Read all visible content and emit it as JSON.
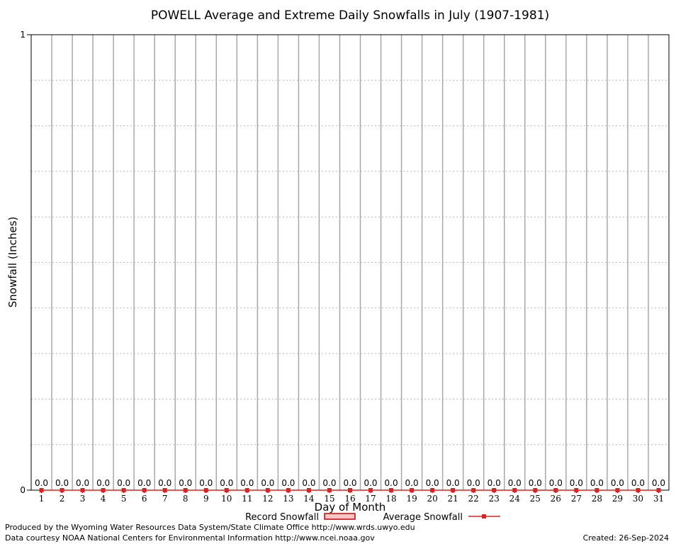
{
  "chart_data": {
    "type": "bar",
    "title": "POWELL Average and Extreme Daily Snowfalls in July (1907-1981)",
    "xlabel": "Day of Month",
    "ylabel": "Snowfall (Inches)",
    "ylim": [
      0,
      1
    ],
    "y_ticks": [
      "0",
      "1"
    ],
    "categories": [
      "1",
      "2",
      "3",
      "4",
      "5",
      "6",
      "7",
      "8",
      "9",
      "10",
      "11",
      "12",
      "13",
      "14",
      "15",
      "16",
      "17",
      "18",
      "19",
      "20",
      "21",
      "22",
      "23",
      "24",
      "25",
      "26",
      "27",
      "28",
      "29",
      "30",
      "31"
    ],
    "series": [
      {
        "name": "Record Snowfall",
        "type": "bar",
        "color": "#cc0000",
        "values": [
          0,
          0,
          0,
          0,
          0,
          0,
          0,
          0,
          0,
          0,
          0,
          0,
          0,
          0,
          0,
          0,
          0,
          0,
          0,
          0,
          0,
          0,
          0,
          0,
          0,
          0,
          0,
          0,
          0,
          0,
          0
        ]
      },
      {
        "name": "Average Snowfall",
        "type": "line",
        "color": "#dd2222",
        "values": [
          0,
          0,
          0,
          0,
          0,
          0,
          0,
          0,
          0,
          0,
          0,
          0,
          0,
          0,
          0,
          0,
          0,
          0,
          0,
          0,
          0,
          0,
          0,
          0,
          0,
          0,
          0,
          0,
          0,
          0,
          0
        ]
      }
    ],
    "data_labels": [
      "0.0",
      "0.0",
      "0.0",
      "0.0",
      "0.0",
      "0.0",
      "0.0",
      "0.0",
      "0.0",
      "0.0",
      "0.0",
      "0.0",
      "0.0",
      "0.0",
      "0.0",
      "0.0",
      "0.0",
      "0.0",
      "0.0",
      "0.0",
      "0.0",
      "0.0",
      "0.0",
      "0.0",
      "0.0",
      "0.0",
      "0.0",
      "0.0",
      "0.0",
      "0.0",
      "0.0"
    ],
    "grid": true,
    "legend": "bottom"
  },
  "footer": {
    "credit_line1": "Produced by the Wyoming Water Resources Data System/State Climate Office http://www.wrds.uwyo.edu",
    "credit_line2": "Data courtesy NOAA National Centers for Environmental Information http://www.ncei.noaa.gov",
    "created": "Created: 26-Sep-2024"
  }
}
